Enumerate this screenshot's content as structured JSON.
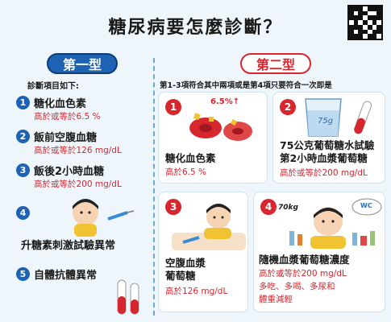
{
  "title": "糖尿病要怎麼診斷？",
  "type1": {
    "label": "第一型",
    "subtitle": "診斷項目如下:",
    "items": [
      {
        "n": "1",
        "title": "糖化血色素",
        "crit": "高於或等於6.5 %"
      },
      {
        "n": "2",
        "title": "飯前空腹血糖",
        "crit": "高於或等於126 mg/dL"
      },
      {
        "n": "3",
        "title": "飯後2小時血糖",
        "crit": "高於或等於200 mg/dL"
      },
      {
        "n": "4",
        "title": "升糖素刺激試驗異常",
        "crit": ""
      },
      {
        "n": "5",
        "title": "自體抗體異常",
        "crit": ""
      }
    ]
  },
  "type2": {
    "label": "第二型",
    "subtitle": "第1-3項符合其中兩項或是第4項只要符合一次即是",
    "items": [
      {
        "n": "1",
        "title": "糖化血色素",
        "crit": "高於6.5 %",
        "badge": "6.5%↑"
      },
      {
        "n": "2",
        "title_l1": "75公克葡萄糖水試驗",
        "title_l2": "第2小時血漿葡萄糖",
        "crit": "高於或等於200 mg/dL",
        "cup": "75g"
      },
      {
        "n": "3",
        "title_l1": "空腹血漿",
        "title_l2": "葡萄糖",
        "crit": "高於126 mg/dL"
      },
      {
        "n": "4",
        "title": "隨機血漿葡萄糖濃度",
        "crit": "高於或等於200 mg/dL",
        "note_l1": "多吃、多喝、多尿和",
        "note_l2": "體重減輕",
        "scale": "70kg",
        "wc": "WC"
      }
    ]
  },
  "colors": {
    "blue": "#1d62b3",
    "red": "#d8262f",
    "bg": "#eef6fb"
  }
}
